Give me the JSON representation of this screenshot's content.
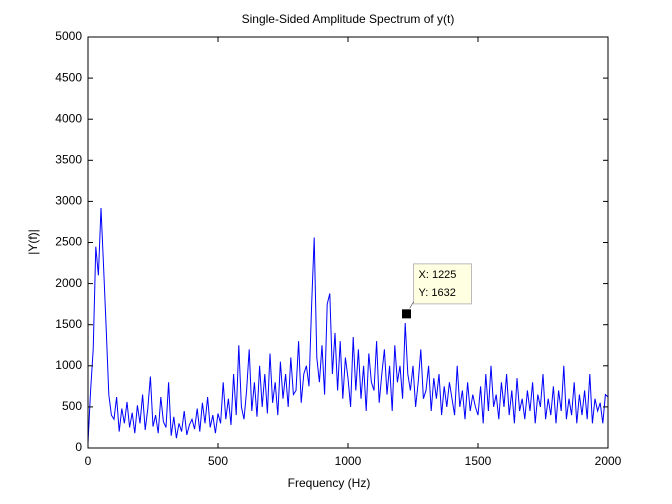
{
  "chart_data": {
    "type": "line",
    "title": "Single-Sided Amplitude Spectrum of y(t)",
    "xlabel": "Frequency (Hz)",
    "ylabel": "|Y(f)|",
    "color": "#0000ff",
    "xlim": [
      0,
      2000
    ],
    "xticks": [
      0,
      500,
      1000,
      1500,
      2000
    ],
    "ylim": [
      0,
      5000
    ],
    "yticks": [
      0,
      500,
      1000,
      1500,
      2000,
      2500,
      3000,
      3500,
      4000,
      4500,
      5000
    ],
    "x": [
      0,
      10,
      20,
      30,
      40,
      50,
      60,
      70,
      80,
      90,
      100,
      110,
      120,
      130,
      140,
      150,
      160,
      170,
      180,
      190,
      200,
      210,
      220,
      230,
      240,
      250,
      260,
      270,
      280,
      290,
      300,
      310,
      320,
      330,
      340,
      350,
      360,
      370,
      380,
      390,
      400,
      410,
      420,
      430,
      440,
      450,
      460,
      470,
      480,
      490,
      500,
      510,
      520,
      530,
      540,
      550,
      560,
      570,
      580,
      590,
      600,
      610,
      620,
      630,
      640,
      650,
      660,
      670,
      680,
      690,
      700,
      710,
      720,
      730,
      740,
      750,
      760,
      770,
      780,
      790,
      800,
      810,
      820,
      830,
      840,
      850,
      860,
      870,
      880,
      890,
      900,
      910,
      920,
      930,
      940,
      950,
      960,
      970,
      980,
      990,
      1000,
      1010,
      1020,
      1030,
      1040,
      1050,
      1060,
      1070,
      1080,
      1090,
      1100,
      1110,
      1120,
      1130,
      1140,
      1150,
      1160,
      1170,
      1180,
      1190,
      1200,
      1210,
      1220,
      1230,
      1240,
      1250,
      1260,
      1270,
      1280,
      1290,
      1300,
      1310,
      1320,
      1330,
      1340,
      1350,
      1360,
      1370,
      1380,
      1390,
      1400,
      1410,
      1420,
      1430,
      1440,
      1450,
      1460,
      1470,
      1480,
      1490,
      1500,
      1510,
      1520,
      1530,
      1540,
      1550,
      1560,
      1570,
      1580,
      1590,
      1600,
      1610,
      1620,
      1630,
      1640,
      1650,
      1660,
      1670,
      1680,
      1690,
      1700,
      1710,
      1720,
      1730,
      1740,
      1750,
      1760,
      1770,
      1780,
      1790,
      1800,
      1810,
      1820,
      1830,
      1840,
      1850,
      1860,
      1870,
      1880,
      1890,
      1900,
      1910,
      1920,
      1930,
      1940,
      1950,
      1960,
      1970,
      1980,
      1990,
      2000
    ],
    "values": [
      60,
      700,
      1200,
      2450,
      2100,
      2920,
      2200,
      1450,
      650,
      400,
      350,
      620,
      200,
      480,
      300,
      560,
      250,
      430,
      180,
      520,
      300,
      650,
      220,
      480,
      870,
      260,
      400,
      180,
      620,
      320,
      250,
      800,
      150,
      380,
      120,
      300,
      200,
      450,
      160,
      280,
      350,
      230,
      480,
      200,
      550,
      300,
      620,
      250,
      400,
      180,
      420,
      300,
      800,
      350,
      600,
      280,
      900,
      400,
      1250,
      500,
      350,
      700,
      1200,
      450,
      800,
      380,
      1000,
      500,
      900,
      420,
      1150,
      550,
      800,
      400,
      1050,
      600,
      900,
      500,
      1100,
      650,
      700,
      1300,
      550,
      900,
      1000,
      750,
      1730,
      2560,
      1100,
      800,
      1250,
      650,
      1750,
      1880,
      900,
      1400,
      700,
      1300,
      600,
      1100,
      850,
      500,
      1350,
      700,
      1200,
      600,
      1000,
      450,
      1150,
      800,
      700,
      1300,
      550,
      900,
      1200,
      650,
      1000,
      450,
      1250,
      800,
      1000,
      600,
      1520,
      900,
      700,
      1000,
      500,
      800,
      1200,
      600,
      700,
      1000,
      450,
      850,
      600,
      900,
      400,
      750,
      500,
      800,
      600,
      400,
      1000,
      500,
      700,
      350,
      800,
      450,
      650,
      500,
      400,
      750,
      300,
      900,
      450,
      1000,
      500,
      650,
      350,
      800,
      500,
      900,
      400,
      700,
      300,
      850,
      450,
      600,
      350,
      700,
      450,
      800,
      300,
      650,
      500,
      900,
      350,
      600,
      400,
      750,
      300,
      700,
      450,
      1000,
      350,
      600,
      400,
      800,
      300,
      650,
      400,
      700,
      350,
      900,
      300,
      600,
      450,
      550,
      300,
      650,
      620
    ],
    "annotation": {
      "x": 1225,
      "y": 1632,
      "labels": [
        "X: 1225",
        "Y: 1632"
      ]
    }
  }
}
